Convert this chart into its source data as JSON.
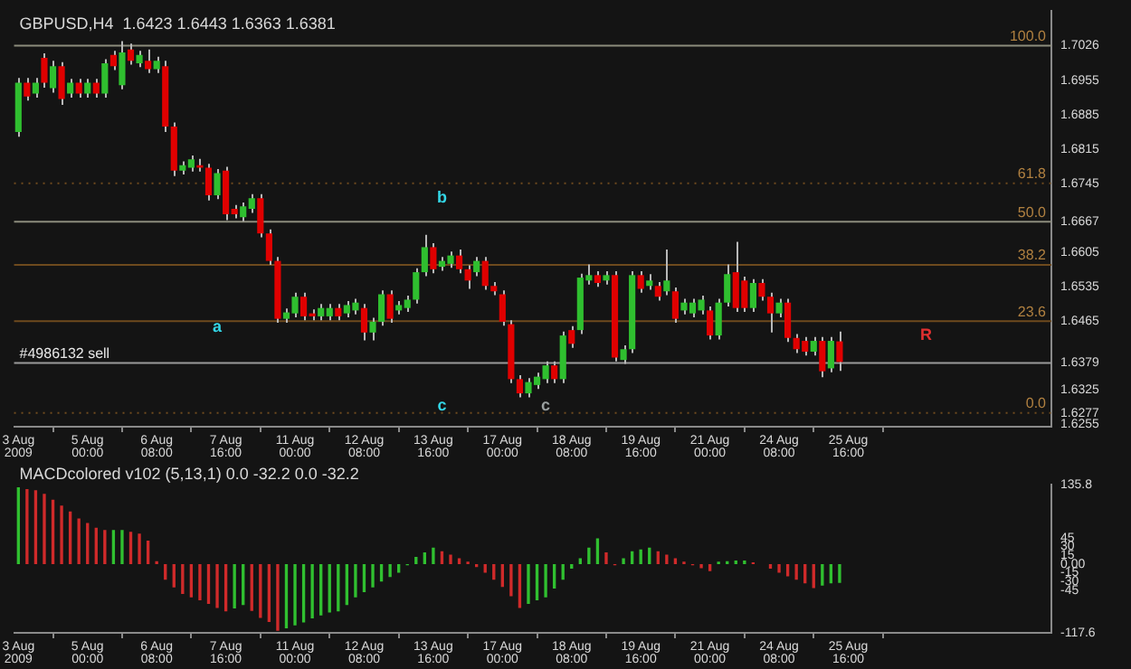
{
  "chart_data": [
    {
      "type": "candlestick",
      "title": "GBPUSD,H4  1.6423 1.6443 1.6363 1.6381",
      "legend": false,
      "grid": false,
      "categories": [
        "3 Aug 2009",
        null,
        null,
        null,
        null,
        null,
        null,
        null,
        "5 Aug 00:00",
        null,
        null,
        null,
        null,
        null,
        null,
        null,
        "6 Aug 08:00",
        null,
        null,
        null,
        null,
        null,
        null,
        null,
        "7 Aug 16:00",
        null,
        null,
        null,
        null,
        null,
        null,
        null,
        "11 Aug 00:00",
        null,
        null,
        null,
        null,
        null,
        null,
        null,
        "12 Aug 08:00",
        null,
        null,
        null,
        null,
        null,
        null,
        null,
        "13 Aug 16:00",
        null,
        null,
        null,
        null,
        null,
        null,
        null,
        "17 Aug 00:00",
        null,
        null,
        null,
        null,
        null,
        null,
        null,
        "18 Aug 08:00",
        null,
        null,
        null,
        null,
        null,
        null,
        null,
        "19 Aug 16:00",
        null,
        null,
        null,
        null,
        null,
        null,
        null,
        "21 Aug 00:00",
        null,
        null,
        null,
        null,
        null,
        null,
        null,
        "24 Aug 08:00",
        null,
        null,
        null,
        null,
        null,
        null,
        null,
        "25 Aug 16:00",
        null,
        null,
        null,
        null,
        null,
        null,
        null,
        null,
        null,
        null,
        null,
        null,
        null,
        null,
        null,
        null,
        null,
        null,
        null,
        null,
        null,
        null,
        null
      ],
      "ohlc": [
        [
          1.685,
          1.696,
          1.684,
          1.695
        ],
        [
          1.695,
          1.696,
          1.6914,
          1.6922
        ],
        [
          1.6928,
          1.696,
          1.692,
          1.695
        ],
        [
          1.7001,
          1.701,
          1.694,
          1.695
        ],
        [
          1.6939,
          1.6995,
          1.693,
          1.6984
        ],
        [
          1.6984,
          1.6992,
          1.6905,
          1.6917
        ],
        [
          1.6928,
          1.6958,
          1.692,
          1.695
        ],
        [
          1.695,
          1.6958,
          1.692,
          1.6928
        ],
        [
          1.6928,
          1.6958,
          1.692,
          1.695
        ],
        [
          1.695,
          1.6958,
          1.692,
          1.6928
        ],
        [
          1.6928,
          1.6998,
          1.692,
          1.699
        ],
        [
          1.7007,
          1.7015,
          1.6976,
          1.6984
        ],
        [
          1.6945,
          1.7035,
          1.6937,
          1.7012
        ],
        [
          1.7018,
          1.703,
          1.6987,
          1.6995
        ],
        [
          1.699,
          1.7015,
          1.6982,
          1.7007
        ],
        [
          1.6995,
          1.7018,
          1.697,
          1.6978
        ],
        [
          1.6978,
          1.7003,
          1.697,
          1.6995
        ],
        [
          1.6984,
          1.6995,
          1.685,
          1.6861
        ],
        [
          1.6861,
          1.6869,
          1.676,
          1.6771
        ],
        [
          1.6771,
          1.679,
          1.6763,
          1.6782
        ],
        [
          1.6777,
          1.6802,
          1.6769,
          1.6794
        ],
        [
          1.6782,
          1.6795,
          1.6769,
          1.6777
        ],
        [
          1.6777,
          1.6785,
          1.671,
          1.6721
        ],
        [
          1.6721,
          1.6774,
          1.6713,
          1.6766
        ],
        [
          1.6771,
          1.6779,
          1.667,
          1.6682
        ],
        [
          1.6693,
          1.6701,
          1.6674,
          1.6682
        ],
        [
          1.6676,
          1.6706,
          1.6668,
          1.6698
        ],
        [
          1.6693,
          1.6723,
          1.6685,
          1.6715
        ],
        [
          1.6715,
          1.6723,
          1.6635,
          1.6643
        ],
        [
          1.6643,
          1.6651,
          1.6579,
          1.6587
        ],
        [
          1.6587,
          1.6595,
          1.6461,
          1.6469
        ],
        [
          1.6469,
          1.649,
          1.6461,
          1.6482
        ],
        [
          1.648,
          1.6522,
          1.6472,
          1.6514
        ],
        [
          1.6514,
          1.6522,
          1.6466,
          1.6474
        ],
        [
          1.648,
          1.6488,
          1.6466,
          1.6474
        ],
        [
          1.6474,
          1.6499,
          1.6466,
          1.6491
        ],
        [
          1.6474,
          1.6499,
          1.6466,
          1.6491
        ],
        [
          1.6491,
          1.6499,
          1.6466,
          1.6474
        ],
        [
          1.648,
          1.6505,
          1.6472,
          1.6497
        ],
        [
          1.6486,
          1.651,
          1.6478,
          1.6502
        ],
        [
          1.6491,
          1.6499,
          1.6425,
          1.6441
        ],
        [
          1.6441,
          1.6471,
          1.6425,
          1.6463
        ],
        [
          1.6463,
          1.6527,
          1.6455,
          1.6519
        ],
        [
          1.6519,
          1.6527,
          1.6461,
          1.6469
        ],
        [
          1.6486,
          1.6505,
          1.6478,
          1.6497
        ],
        [
          1.6491,
          1.6516,
          1.6483,
          1.6508
        ],
        [
          1.6508,
          1.6572,
          1.65,
          1.6564
        ],
        [
          1.6564,
          1.664,
          1.6556,
          1.6615
        ],
        [
          1.6615,
          1.6623,
          1.6562,
          1.657
        ],
        [
          1.6575,
          1.6595,
          1.6567,
          1.6587
        ],
        [
          1.6581,
          1.6606,
          1.6573,
          1.6598
        ],
        [
          1.6598,
          1.661,
          1.6562,
          1.657
        ],
        [
          1.657,
          1.6578,
          1.653,
          1.6547
        ],
        [
          1.6564,
          1.6595,
          1.6556,
          1.6587
        ],
        [
          1.6587,
          1.6595,
          1.6528,
          1.6536
        ],
        [
          1.6536,
          1.6544,
          1.6517,
          1.6525
        ],
        [
          1.6519,
          1.6527,
          1.6455,
          1.6463
        ],
        [
          1.6458,
          1.6466,
          1.6338,
          1.6346
        ],
        [
          1.6346,
          1.6354,
          1.6309,
          1.6317
        ],
        [
          1.6317,
          1.6348,
          1.6309,
          1.634
        ],
        [
          1.6334,
          1.6359,
          1.6326,
          1.6351
        ],
        [
          1.6346,
          1.6382,
          1.6338,
          1.6374
        ],
        [
          1.6374,
          1.6382,
          1.6338,
          1.6346
        ],
        [
          1.6346,
          1.6443,
          1.6338,
          1.6435
        ],
        [
          1.6446,
          1.6454,
          1.641,
          1.6418
        ],
        [
          1.6446,
          1.6561,
          1.6438,
          1.6553
        ],
        [
          1.6547,
          1.658,
          1.6539,
          1.6558
        ],
        [
          1.6558,
          1.6566,
          1.6534,
          1.6542
        ],
        [
          1.6547,
          1.6566,
          1.6539,
          1.6558
        ],
        [
          1.6558,
          1.6566,
          1.6382,
          1.639
        ],
        [
          1.6385,
          1.6415,
          1.6377,
          1.6407
        ],
        [
          1.6407,
          1.6566,
          1.6399,
          1.6558
        ],
        [
          1.6558,
          1.6566,
          1.6522,
          1.653
        ],
        [
          1.6536,
          1.656,
          1.6528,
          1.6547
        ],
        [
          1.6536,
          1.6544,
          1.6506,
          1.6514
        ],
        [
          1.6525,
          1.661,
          1.6517,
          1.6547
        ],
        [
          1.6525,
          1.6533,
          1.6461,
          1.6469
        ],
        [
          1.6486,
          1.651,
          1.6478,
          1.6502
        ],
        [
          1.648,
          1.651,
          1.6472,
          1.6502
        ],
        [
          1.6486,
          1.6516,
          1.6478,
          1.6508
        ],
        [
          1.6486,
          1.6494,
          1.6427,
          1.6435
        ],
        [
          1.6435,
          1.651,
          1.6427,
          1.6502
        ],
        [
          1.6502,
          1.658,
          1.6494,
          1.656
        ],
        [
          1.6564,
          1.6626,
          1.6483,
          1.6491
        ],
        [
          1.6547,
          1.6555,
          1.6483,
          1.6491
        ],
        [
          1.6491,
          1.655,
          1.6483,
          1.6542
        ],
        [
          1.6542,
          1.655,
          1.6506,
          1.6514
        ],
        [
          1.6514,
          1.6522,
          1.6441,
          1.648
        ],
        [
          1.648,
          1.651,
          1.6472,
          1.6502
        ],
        [
          1.6502,
          1.651,
          1.6422,
          1.643
        ],
        [
          1.643,
          1.6438,
          1.6399,
          1.6407
        ],
        [
          1.6424,
          1.6432,
          1.6394,
          1.6402
        ],
        [
          1.6402,
          1.6432,
          1.6394,
          1.6424
        ],
        [
          1.6424,
          1.6432,
          1.635,
          1.6362
        ],
        [
          1.6368,
          1.6432,
          1.636,
          1.6424
        ],
        [
          1.6423,
          1.6443,
          1.6363,
          1.6381
        ],
        null,
        null,
        null,
        null,
        null,
        null,
        null,
        null,
        null,
        null,
        null,
        null,
        null,
        null,
        null,
        null,
        null,
        null,
        null,
        null,
        null,
        null,
        null,
        null
      ],
      "ylim": [
        1.6249,
        1.7096
      ],
      "yticks": [
        1.6255,
        1.6277,
        1.6325,
        1.6379,
        1.6465,
        1.6535,
        1.6605,
        1.6667,
        1.6745,
        1.6815,
        1.6885,
        1.6955,
        1.7026
      ],
      "ref_lines": [
        {
          "axis": "y",
          "value": 1.7026,
          "color": "#8c8c7c",
          "line_style": "solid"
        },
        {
          "axis": "y",
          "value": 1.6745,
          "color": "#6e4a1e",
          "line_style": "dotted"
        },
        {
          "axis": "y",
          "value": 1.6667,
          "color": "#8c8c7c",
          "line_style": "solid"
        },
        {
          "axis": "y",
          "value": 1.6579,
          "color": "#6e4a1e",
          "line_style": "solid"
        },
        {
          "axis": "y",
          "value": 1.6464,
          "color": "#6e4a1e",
          "line_style": "solid"
        },
        {
          "axis": "y",
          "value": 1.6379,
          "color": "#9a9a9a",
          "line_style": "solid"
        },
        {
          "axis": "y",
          "value": 1.6277,
          "color": "#6e4a1e",
          "line_style": "dotted"
        }
      ],
      "annotations": [
        {
          "text": "100.0",
          "y": 1.7026
        },
        {
          "text": "61.8",
          "y": 1.6745
        },
        {
          "text": "50.0",
          "y": 1.6667
        },
        {
          "text": "38.2",
          "y": 1.6579
        },
        {
          "text": "23.6",
          "y": 1.6464
        },
        {
          "text": "0.0",
          "y": 1.6277
        },
        {
          "text": "#4986132 sell",
          "y": 1.6379
        },
        "a",
        "b",
        "c",
        "c",
        "R"
      ]
    },
    {
      "type": "bar",
      "title": "MACDcolored v102 (5,13,1) 0.0 -32.2 0.0 -32.2",
      "legend": false,
      "grid": false,
      "categories": [
        "3 Aug 2009",
        null,
        null,
        null,
        null,
        null,
        null,
        null,
        "5 Aug 00:00",
        null,
        null,
        null,
        null,
        null,
        null,
        null,
        "6 Aug 08:00",
        null,
        null,
        null,
        null,
        null,
        null,
        null,
        "7 Aug 16:00",
        null,
        null,
        null,
        null,
        null,
        null,
        null,
        "11 Aug 00:00",
        null,
        null,
        null,
        null,
        null,
        null,
        null,
        "12 Aug 08:00",
        null,
        null,
        null,
        null,
        null,
        null,
        null,
        "13 Aug 16:00",
        null,
        null,
        null,
        null,
        null,
        null,
        null,
        "17 Aug 00:00",
        null,
        null,
        null,
        null,
        null,
        null,
        null,
        "18 Aug 08:00",
        null,
        null,
        null,
        null,
        null,
        null,
        null,
        "19 Aug 16:00",
        null,
        null,
        null,
        null,
        null,
        null,
        null,
        "21 Aug 00:00",
        null,
        null,
        null,
        null,
        null,
        null,
        null,
        "24 Aug 08:00",
        null,
        null,
        null,
        null,
        null,
        null,
        null,
        "25 Aug 16:00",
        null,
        null,
        null,
        null,
        null,
        null,
        null,
        null,
        null,
        null,
        null,
        null,
        null,
        null,
        null,
        null,
        null,
        null,
        null,
        null,
        null,
        null,
        null
      ],
      "values": [
        131,
        128,
        126,
        120,
        110,
        100,
        90,
        78,
        70,
        62,
        58,
        58,
        58,
        55,
        52,
        40,
        5,
        -27,
        -40,
        -51,
        -57,
        -62,
        -68,
        -75,
        -81,
        -76,
        -70,
        -80,
        -92,
        -99,
        -114,
        -110,
        -105,
        -100,
        -93,
        -88,
        -83,
        -81,
        -70,
        -57,
        -48,
        -40,
        -30,
        -22,
        -15,
        -2,
        12,
        20,
        28,
        22,
        16,
        10,
        4,
        -5,
        -15,
        -27,
        -39,
        -55,
        -75,
        -68,
        -62,
        -57,
        -42,
        -27,
        -8,
        10,
        28,
        44,
        20,
        -2,
        10,
        22,
        25,
        28,
        22,
        16,
        10,
        4,
        -2,
        -7,
        -12,
        4,
        5,
        6,
        6,
        3,
        0,
        -8,
        -15,
        -21,
        -27,
        -33,
        -41,
        -37,
        -33,
        -32.2,
        null,
        null,
        null,
        null,
        null,
        null,
        null,
        null,
        null,
        null,
        null,
        null,
        null,
        null,
        null,
        null,
        null,
        null,
        null,
        null,
        null,
        null,
        null,
        null
      ],
      "ylim": [
        -117.6,
        135.8
      ],
      "yticks": [
        -117.6,
        -45,
        -30,
        -15,
        {
          "value": 0,
          "label": "0.00"
        },
        15,
        30,
        45,
        135.8
      ]
    }
  ]
}
